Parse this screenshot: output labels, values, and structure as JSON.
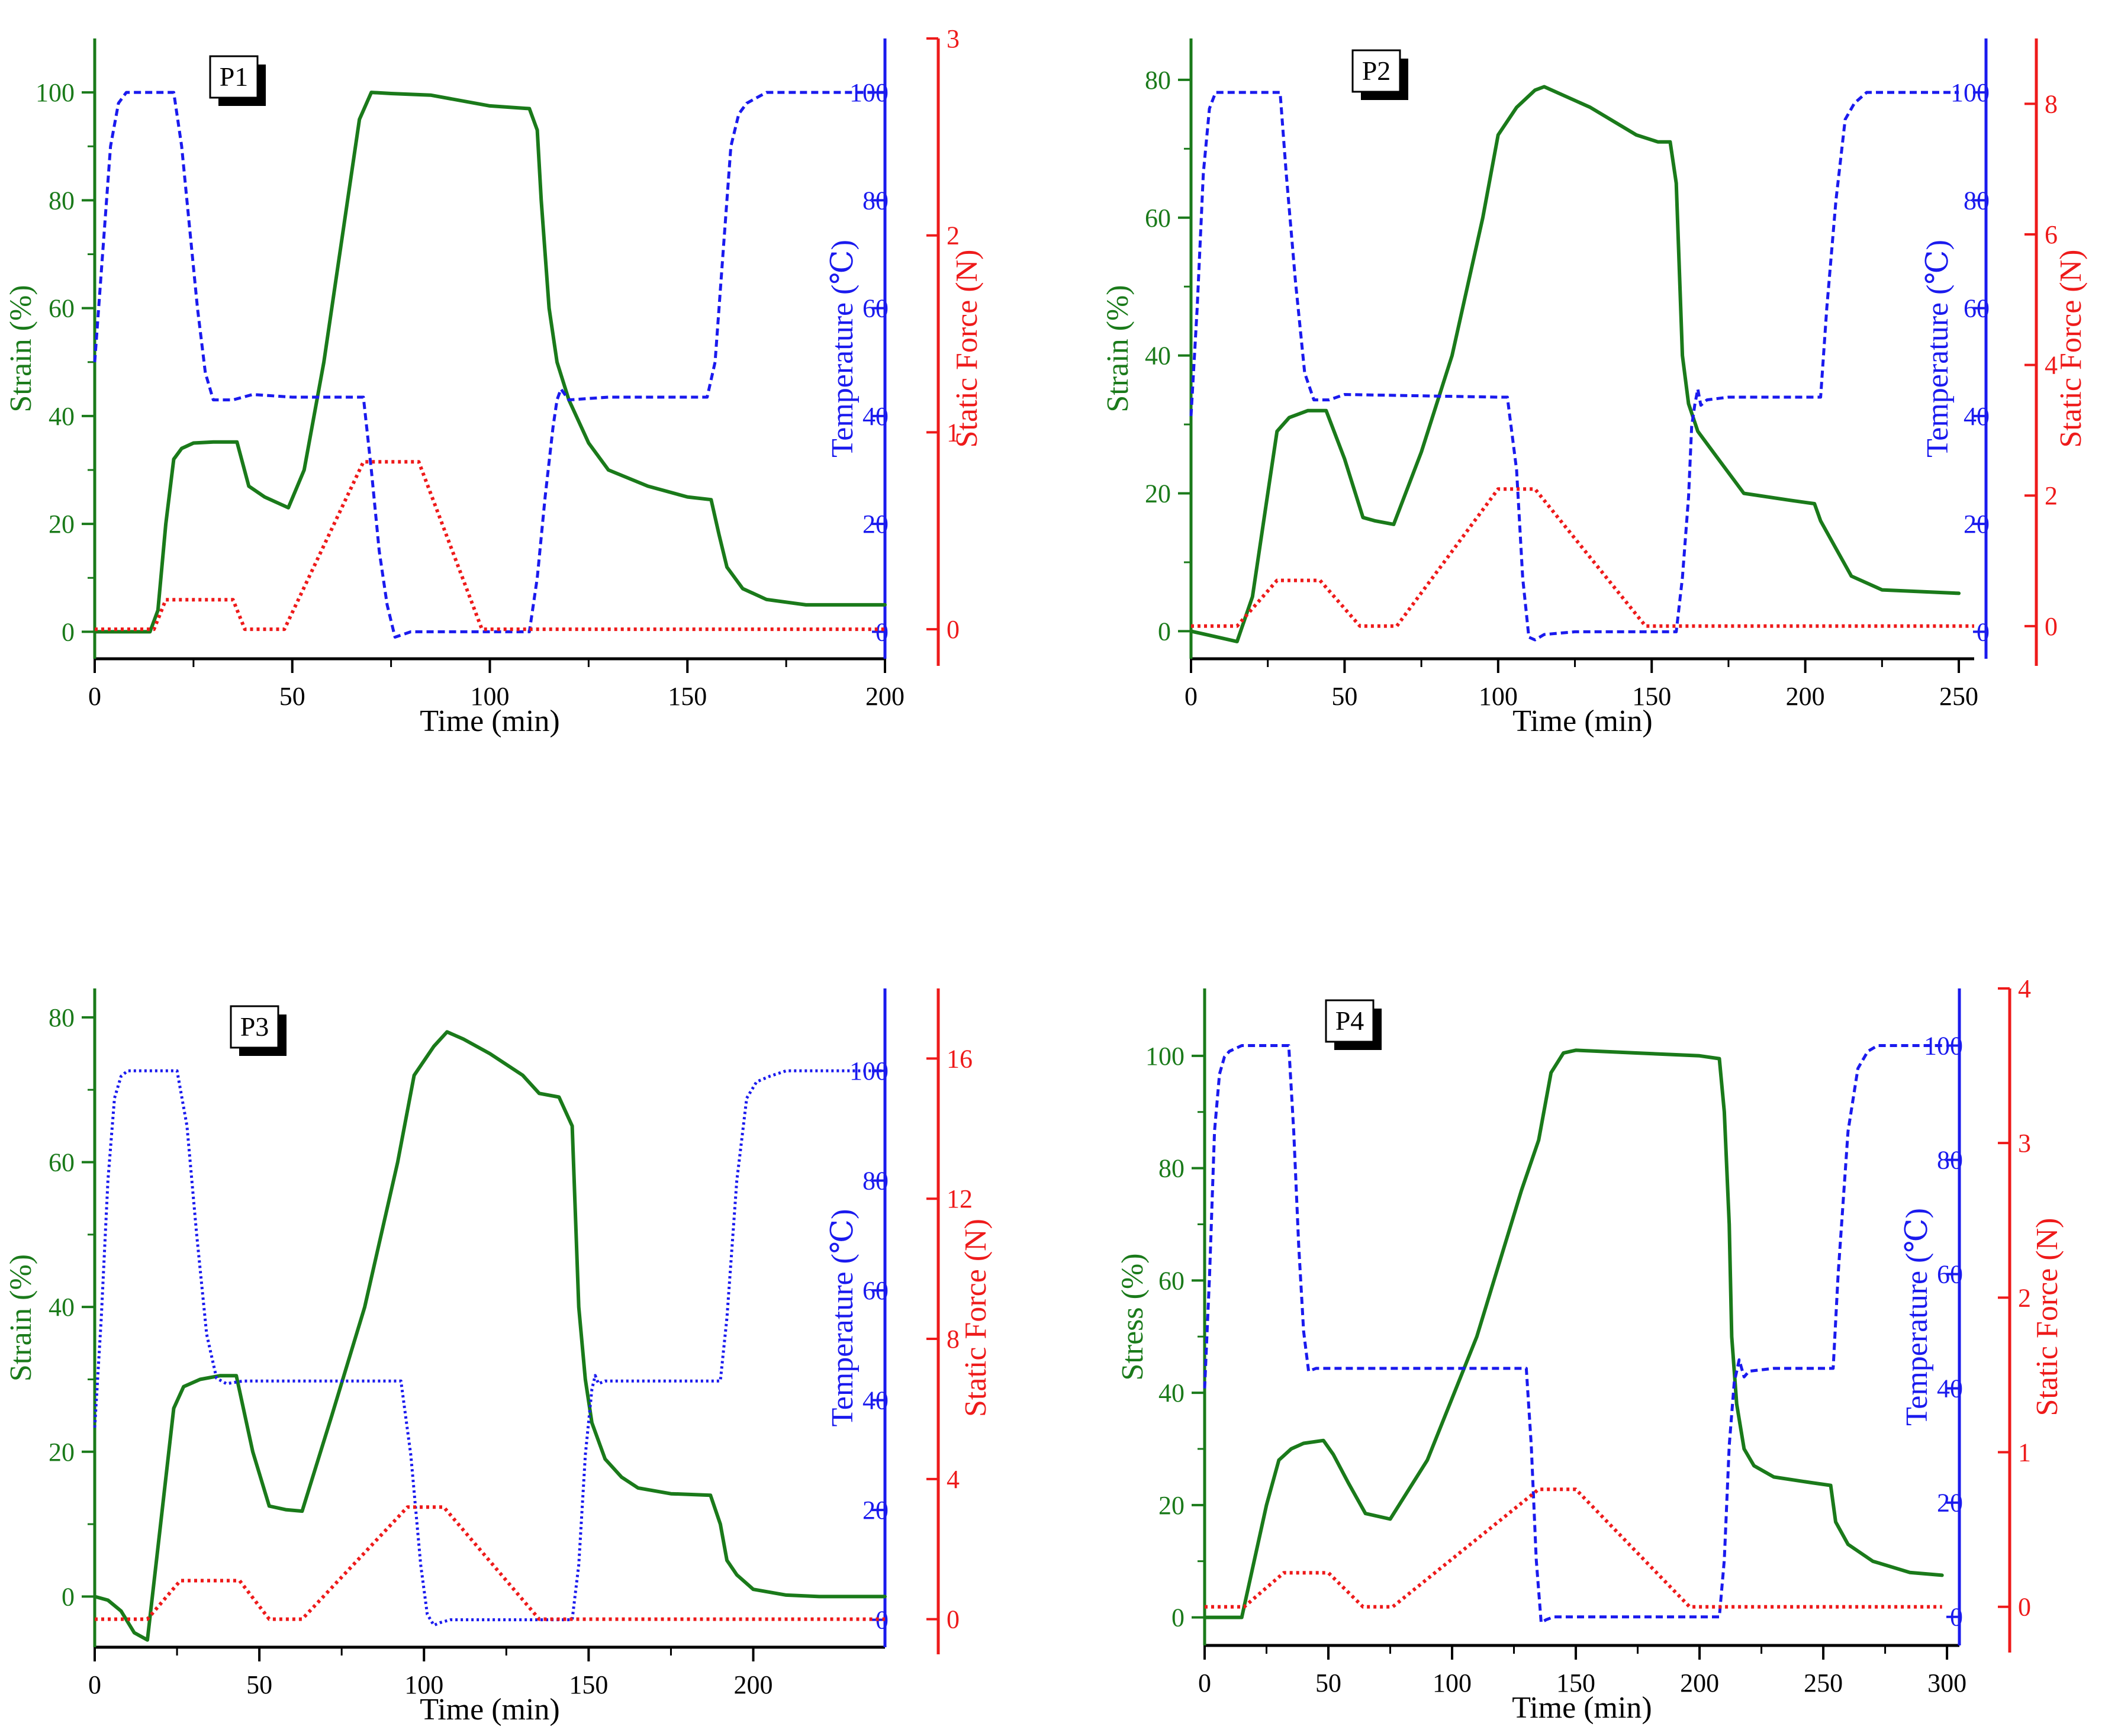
{
  "figure": {
    "colors": {
      "strain": "#1a7a1a",
      "temperature": "#1a1aee",
      "force": "#ee1a1a",
      "axis": "#000000"
    }
  },
  "chart_data": [
    {
      "type": "line",
      "label": "P1",
      "xlabel": "Time (min)",
      "ylabel_left": "Strain (%)",
      "ylabel_temp": "Temperature (℃)",
      "ylabel_force": "Static Force (N)",
      "xlim": [
        0,
        200
      ],
      "x_ticks": [
        0,
        50,
        100,
        150,
        200
      ],
      "ylim_strain": [
        -5,
        110
      ],
      "strain_ticks": [
        0,
        20,
        40,
        60,
        80,
        100
      ],
      "ylim_temp": [
        -5,
        110
      ],
      "temp_ticks": [
        0,
        20,
        40,
        60,
        80,
        100
      ],
      "ylim_force": [
        -0.15,
        3.0
      ],
      "force_ticks": [
        0,
        1,
        2,
        3
      ],
      "series": [
        {
          "name": "Strain",
          "axis": "strain",
          "x": [
            0,
            14,
            16,
            18,
            20,
            22,
            25,
            30,
            36,
            39,
            43,
            49,
            53,
            58,
            63,
            67,
            70,
            75,
            85,
            100,
            110,
            112,
            113,
            115,
            117,
            120,
            125,
            130,
            140,
            150,
            156,
            158,
            160,
            164,
            170,
            180,
            200
          ],
          "y": [
            0,
            0,
            4,
            20,
            32,
            34,
            35,
            35.2,
            35.2,
            27,
            25,
            23,
            30,
            50,
            75,
            95,
            100,
            99.8,
            99.5,
            97.5,
            97,
            93,
            80,
            60,
            50,
            43,
            35,
            30,
            27,
            25,
            24.5,
            18,
            12,
            8,
            6,
            5,
            5
          ]
        },
        {
          "name": "Temperature",
          "axis": "temp",
          "x": [
            0,
            2,
            4,
            6,
            8,
            10,
            15,
            20,
            22,
            24,
            26,
            28,
            30,
            35,
            40,
            50,
            65,
            68,
            70,
            72,
            74,
            76,
            78,
            80,
            90,
            110,
            112,
            114,
            116,
            117,
            118,
            120,
            130,
            150,
            155,
            157,
            159,
            161,
            163,
            165,
            170,
            200
          ],
          "y": [
            50,
            70,
            90,
            98,
            100,
            100,
            100,
            100,
            90,
            75,
            60,
            48,
            43,
            43,
            44,
            43.5,
            43.5,
            43.5,
            30,
            15,
            5,
            -1,
            -0.5,
            0,
            0,
            0,
            10,
            25,
            38,
            43,
            45,
            43,
            43.5,
            43.5,
            43.5,
            50,
            70,
            90,
            96,
            98,
            100,
            100
          ]
        },
        {
          "name": "Static Force",
          "axis": "force",
          "x": [
            0,
            15,
            18,
            35,
            38,
            48,
            68,
            82,
            98,
            200
          ],
          "y": [
            0,
            0,
            0.15,
            0.15,
            0,
            0,
            0.85,
            0.85,
            0,
            0
          ]
        }
      ]
    },
    {
      "type": "line",
      "label": "P2",
      "xlabel": "Time (min)",
      "ylabel_left": "Strain (%)",
      "ylabel_temp": "Temperature (℃)",
      "ylabel_force": "Static Force (N)",
      "xlim": [
        0,
        255
      ],
      "x_ticks": [
        0,
        50,
        100,
        150,
        200,
        250
      ],
      "ylim_strain": [
        -4,
        86
      ],
      "strain_ticks": [
        0,
        20,
        40,
        60,
        80
      ],
      "ylim_temp": [
        -5,
        110
      ],
      "temp_ticks": [
        0,
        20,
        40,
        60,
        80,
        100
      ],
      "ylim_force": [
        -0.5,
        9.0
      ],
      "force_ticks": [
        0,
        2,
        4,
        6,
        8
      ],
      "series": [
        {
          "name": "Strain",
          "axis": "strain",
          "x": [
            0,
            5,
            15,
            20,
            25,
            28,
            32,
            38,
            44,
            50,
            56,
            60,
            66,
            75,
            85,
            95,
            100,
            106,
            112,
            115,
            130,
            145,
            152,
            156,
            158,
            160,
            162,
            165,
            170,
            180,
            195,
            203,
            205,
            210,
            215,
            225,
            250
          ],
          "y": [
            0,
            -0.5,
            -1.5,
            5,
            20,
            29,
            31,
            32,
            32,
            25,
            16.5,
            16,
            15.5,
            26,
            40,
            60,
            72,
            76,
            78.5,
            79,
            76,
            72,
            71,
            71,
            65,
            40,
            33,
            29,
            26,
            20,
            19,
            18.5,
            16,
            12,
            8,
            6,
            5.5
          ]
        },
        {
          "name": "Temperature",
          "axis": "temp",
          "x": [
            0,
            2,
            4,
            6,
            8,
            10,
            15,
            20,
            29,
            31,
            34,
            37,
            40,
            45,
            50,
            100,
            103,
            106,
            108,
            110,
            112,
            115,
            125,
            140,
            158,
            160,
            162,
            163,
            164,
            165,
            166,
            168,
            175,
            200,
            205,
            207,
            210,
            213,
            216,
            220,
            250
          ],
          "y": [
            40,
            60,
            85,
            97,
            100,
            100,
            100,
            100,
            100,
            85,
            65,
            48,
            43,
            43,
            44,
            43.5,
            43.5,
            30,
            10,
            -1,
            -1.5,
            -0.5,
            0,
            0,
            0,
            10,
            25,
            38,
            42,
            45,
            42,
            43,
            43.5,
            43.5,
            43.5,
            60,
            80,
            95,
            98,
            100,
            100
          ]
        },
        {
          "name": "Static Force",
          "axis": "force",
          "x": [
            0,
            15,
            28,
            42,
            55,
            67,
            100,
            112,
            148,
            255
          ],
          "y": [
            0,
            0,
            0.7,
            0.7,
            0,
            0,
            2.1,
            2.1,
            0,
            0
          ]
        }
      ]
    },
    {
      "type": "line",
      "label": "P3",
      "xlabel": "Time (min)",
      "ylabel_left": "Strain (%)",
      "ylabel_temp": "Temperature (℃)",
      "ylabel_force": "Static Force (N)",
      "xlim": [
        0,
        240
      ],
      "x_ticks": [
        0,
        50,
        100,
        150,
        200
      ],
      "ylim_strain": [
        -7,
        84
      ],
      "strain_ticks": [
        0,
        20,
        40,
        60,
        80
      ],
      "ylim_temp": [
        -5,
        115
      ],
      "temp_ticks": [
        0,
        20,
        40,
        60,
        80,
        100
      ],
      "ylim_force": [
        -0.8,
        18.0
      ],
      "force_ticks": [
        0,
        4,
        8,
        12,
        16
      ],
      "series": [
        {
          "name": "Strain",
          "axis": "strain",
          "x": [
            0,
            4,
            8,
            12,
            16,
            20,
            24,
            27,
            32,
            38,
            43,
            48,
            53,
            58,
            63,
            72,
            82,
            92,
            97,
            103,
            107,
            112,
            120,
            130,
            135,
            141,
            145,
            147,
            149,
            151,
            155,
            160,
            165,
            175,
            187,
            190,
            192,
            195,
            200,
            210,
            220,
            240
          ],
          "y": [
            0,
            -0.5,
            -2,
            -5,
            -6,
            10,
            26,
            29,
            30,
            30.5,
            30.5,
            20,
            12.5,
            12,
            11.8,
            25,
            40,
            60,
            72,
            76,
            78,
            77,
            75,
            72,
            69.5,
            69,
            65,
            40,
            30,
            24,
            19,
            16.5,
            15,
            14.2,
            14,
            10,
            5,
            3,
            1,
            0.2,
            0,
            0
          ]
        },
        {
          "name": "Temperature",
          "axis": "temp",
          "x": [
            0,
            2,
            4,
            6,
            8,
            10,
            15,
            20,
            25,
            28,
            31,
            34,
            37,
            40,
            45,
            93,
            96,
            99,
            101,
            103,
            105,
            108,
            120,
            145,
            147,
            149,
            151,
            152,
            153,
            155,
            160,
            190,
            192,
            195,
            198,
            201,
            205,
            210,
            240
          ],
          "y": [
            35,
            55,
            80,
            95,
            99,
            100,
            100,
            100,
            100,
            90,
            70,
            52,
            44,
            43,
            43.5,
            43.5,
            30,
            10,
            1,
            -1,
            -0.5,
            0,
            0,
            0,
            10,
            30,
            42,
            44.5,
            43,
            43.5,
            43.5,
            43.5,
            55,
            80,
            95,
            98,
            99,
            100,
            100
          ]
        },
        {
          "name": "Static Force",
          "axis": "force",
          "x": [
            0,
            16,
            26,
            44,
            53,
            63,
            95,
            106,
            135,
            240
          ],
          "y": [
            0,
            0,
            1.1,
            1.1,
            0,
            0,
            3.2,
            3.2,
            0,
            0
          ]
        }
      ]
    },
    {
      "type": "line",
      "label": "P4",
      "xlabel": "Time (min)",
      "ylabel_left": "Stress (%)",
      "ylabel_temp": "Temperature (℃)",
      "ylabel_force": "Static Force (N)",
      "xlim": [
        0,
        305
      ],
      "x_ticks": [
        0,
        50,
        100,
        150,
        200,
        250,
        300
      ],
      "ylim_strain": [
        -5,
        112
      ],
      "strain_ticks": [
        0,
        20,
        40,
        60,
        80,
        100
      ],
      "ylim_temp": [
        -5,
        110
      ],
      "temp_ticks": [
        0,
        20,
        40,
        60,
        80,
        100
      ],
      "ylim_force": [
        -0.25,
        4.0
      ],
      "force_ticks": [
        0,
        1,
        2,
        3,
        4
      ],
      "series": [
        {
          "name": "Stress",
          "axis": "strain",
          "x": [
            0,
            15,
            20,
            25,
            30,
            35,
            40,
            48,
            52,
            58,
            65,
            75,
            90,
            110,
            128,
            135,
            140,
            145,
            150,
            175,
            200,
            208,
            210,
            212,
            213,
            215,
            218,
            222,
            230,
            245,
            253,
            255,
            260,
            270,
            285,
            298
          ],
          "y": [
            0,
            0,
            10,
            20,
            28,
            30,
            31,
            31.5,
            29,
            24,
            18.5,
            17.5,
            28,
            50,
            76,
            85,
            97,
            100.5,
            101,
            100.5,
            100,
            99.5,
            90,
            70,
            50,
            38,
            30,
            27,
            25,
            24,
            23.5,
            17,
            13,
            10,
            8,
            7.5
          ]
        },
        {
          "name": "Temperature",
          "axis": "temp",
          "x": [
            0,
            2,
            4,
            6,
            8,
            10,
            15,
            20,
            25,
            34,
            36,
            38,
            40,
            42,
            45,
            60,
            130,
            132,
            134,
            136,
            138,
            141,
            145,
            160,
            208,
            210,
            212,
            214,
            216,
            218,
            220,
            230,
            254,
            256,
            260,
            264,
            268,
            272,
            280,
            298
          ],
          "y": [
            40,
            60,
            85,
            95,
            98,
            99,
            100,
            100,
            100,
            100,
            85,
            65,
            50,
            43,
            43.5,
            43.5,
            43.5,
            30,
            10,
            -1,
            -0.5,
            0,
            0,
            0,
            0,
            10,
            30,
            41,
            45,
            42,
            43,
            43.5,
            43.5,
            60,
            85,
            96,
            99,
            100,
            100,
            100
          ]
        },
        {
          "name": "Static Force",
          "axis": "force",
          "x": [
            0,
            16,
            32,
            50,
            64,
            76,
            135,
            150,
            196,
            298
          ],
          "y": [
            0,
            0,
            0.22,
            0.22,
            0,
            0,
            0.76,
            0.76,
            0,
            0
          ]
        }
      ]
    }
  ]
}
